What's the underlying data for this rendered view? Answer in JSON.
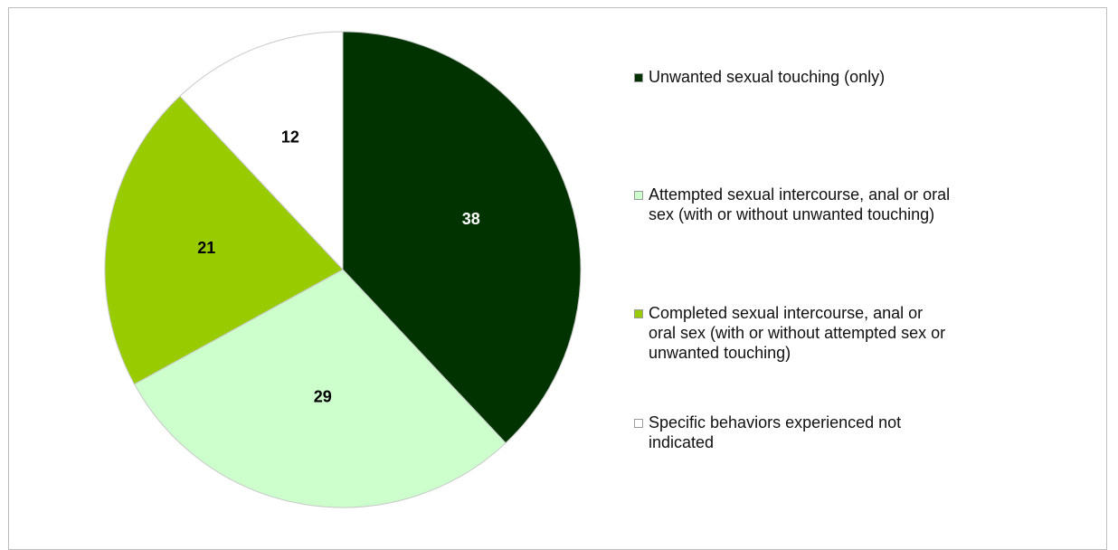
{
  "chart_data": {
    "type": "pie",
    "title": "",
    "start": "top",
    "direction": "clockwise",
    "legend_position": "right",
    "slices": [
      {
        "label": "Unwanted sexual touching (only)",
        "value": 38,
        "value_label": "38",
        "color": "#003300",
        "label_color": "#ffffff"
      },
      {
        "label": "Attempted sexual intercourse, anal or oral sex (with or without unwanted touching)",
        "value": 29,
        "value_label": "29",
        "color": "#ccffcc",
        "label_color": "#000000"
      },
      {
        "label": "Completed sexual intercourse, anal or oral sex (with or without attempted sex or unwanted touching)",
        "value": 21,
        "value_label": "21",
        "color": "#99cc00",
        "label_color": "#000000"
      },
      {
        "label": "Specific behaviors experienced not indicated",
        "value": 12,
        "value_label": "12",
        "color": "#ffffff",
        "label_color": "#000000"
      }
    ]
  },
  "legend": {
    "items": [
      {
        "lines": [
          "Unwanted sexual touching (only)"
        ]
      },
      {
        "lines": [
          "Attempted sexual intercourse, anal or oral",
          "sex (with or without unwanted touching)"
        ]
      },
      {
        "lines": [
          "Completed sexual intercourse, anal or",
          "oral sex (with or without attempted sex or",
          "unwanted touching)"
        ]
      },
      {
        "lines": [
          "Specific behaviors experienced not",
          "indicated"
        ]
      }
    ]
  }
}
